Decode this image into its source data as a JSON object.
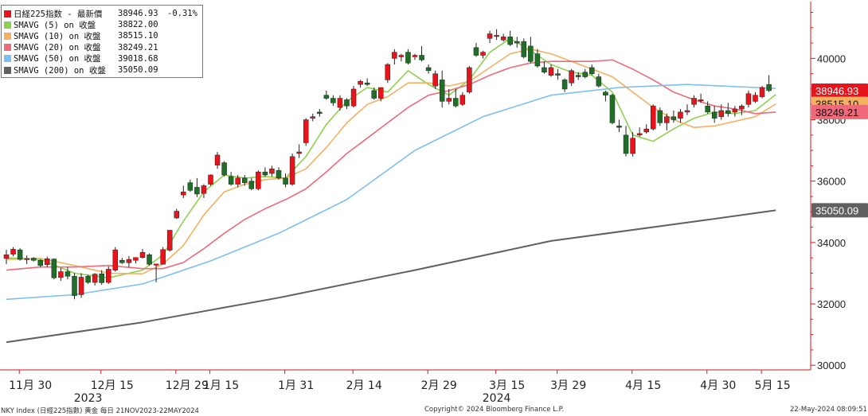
{
  "chart_data": {
    "type": "candlestick",
    "title": "",
    "y_ticks": [
      30000,
      32000,
      34000,
      36000,
      38000,
      40000
    ],
    "ylim": [
      29850,
      41850
    ],
    "grid": false,
    "legend_placement": "top-left",
    "x_tick_labels": [
      "11月 30",
      "12月 15",
      "12月 29",
      "1月 15",
      "1月 31",
      "2月 14",
      "2月 29",
      "3月 15",
      "3月 29",
      "4月 15",
      "4月 30",
      "5月 15"
    ],
    "x_year_labels": [
      "2023",
      "2024"
    ],
    "legend": [
      {
        "label": "日経225指数 - 最新價",
        "value": "38946.93",
        "change": "-0.31%",
        "color": "#e8141c"
      },
      {
        "label": "SMAVG (5)  on 收盤",
        "value": "38822.00",
        "change": "",
        "color": "#8fd14f"
      },
      {
        "label": "SMAVG (10)  on 收盤",
        "value": "38515.10",
        "change": "",
        "color": "#f5b060"
      },
      {
        "label": "SMAVG (20)  on 收盤",
        "value": "38249.21",
        "change": "",
        "color": "#ee6a79"
      },
      {
        "label": "SMAVG (50)  on 收盤",
        "value": "39018.68",
        "change": "",
        "color": "#7fbfef"
      },
      {
        "label": "SMAVG (200)  on 收盤",
        "value": "35050.09",
        "change": "",
        "color": "#606060"
      }
    ],
    "price_tags": [
      {
        "value": "38946.93",
        "color": "#e8141c",
        "text_color": "#ffffff"
      },
      {
        "value": "38515.10",
        "color": "#f5b060",
        "text_color": "#111111"
      },
      {
        "value": "38249.21",
        "color": "#ee6a79",
        "text_color": "#111111"
      },
      {
        "value": "35050.09",
        "color": "#606060",
        "text_color": "#ffffff"
      }
    ],
    "candles": [
      {
        "o": 33480,
        "h": 33760,
        "l": 33300,
        "c": 33600
      },
      {
        "o": 33620,
        "h": 33850,
        "l": 33550,
        "c": 33780
      },
      {
        "o": 33760,
        "h": 33820,
        "l": 33410,
        "c": 33450
      },
      {
        "o": 33450,
        "h": 33580,
        "l": 33300,
        "c": 33480
      },
      {
        "o": 33490,
        "h": 33520,
        "l": 33380,
        "c": 33420
      },
      {
        "o": 33420,
        "h": 33450,
        "l": 33200,
        "c": 33250
      },
      {
        "o": 33280,
        "h": 33540,
        "l": 33200,
        "c": 33470
      },
      {
        "o": 33460,
        "h": 33480,
        "l": 32800,
        "c": 32850
      },
      {
        "o": 32860,
        "h": 33170,
        "l": 32750,
        "c": 33050
      },
      {
        "o": 33050,
        "h": 33200,
        "l": 32800,
        "c": 32900
      },
      {
        "o": 32900,
        "h": 33000,
        "l": 32150,
        "c": 32270
      },
      {
        "o": 32300,
        "h": 33000,
        "l": 32200,
        "c": 32870
      },
      {
        "o": 32900,
        "h": 32950,
        "l": 32650,
        "c": 32700
      },
      {
        "o": 32700,
        "h": 33000,
        "l": 32600,
        "c": 32970
      },
      {
        "o": 32980,
        "h": 33100,
        "l": 32620,
        "c": 32690
      },
      {
        "o": 32700,
        "h": 33220,
        "l": 32650,
        "c": 33130
      },
      {
        "o": 33100,
        "h": 33850,
        "l": 33050,
        "c": 33760
      },
      {
        "o": 33420,
        "h": 33500,
        "l": 33300,
        "c": 33340
      },
      {
        "o": 33340,
        "h": 33560,
        "l": 33200,
        "c": 33450
      },
      {
        "o": 33420,
        "h": 33520,
        "l": 33320,
        "c": 33510
      },
      {
        "o": 33510,
        "h": 33790,
        "l": 33480,
        "c": 33680
      },
      {
        "o": 33600,
        "h": 33650,
        "l": 33250,
        "c": 33290
      },
      {
        "o": 33280,
        "h": 33300,
        "l": 32700,
        "c": 33300
      },
      {
        "o": 33290,
        "h": 33850,
        "l": 33290,
        "c": 33770
      },
      {
        "o": 33750,
        "h": 34400,
        "l": 33700,
        "c": 34400
      },
      {
        "o": 34800,
        "h": 35100,
        "l": 34770,
        "c": 35020
      },
      {
        "o": 35550,
        "h": 35850,
        "l": 35450,
        "c": 35650
      },
      {
        "o": 35950,
        "h": 36050,
        "l": 35650,
        "c": 35700
      },
      {
        "o": 35800,
        "h": 36100,
        "l": 35480,
        "c": 35580
      },
      {
        "o": 35600,
        "h": 35900,
        "l": 35450,
        "c": 35850
      },
      {
        "o": 35900,
        "h": 36220,
        "l": 35850,
        "c": 36200
      },
      {
        "o": 36520,
        "h": 36950,
        "l": 36400,
        "c": 36850
      },
      {
        "o": 36600,
        "h": 36650,
        "l": 36150,
        "c": 36200
      },
      {
        "o": 36150,
        "h": 36300,
        "l": 35850,
        "c": 35900
      },
      {
        "o": 35900,
        "h": 36200,
        "l": 35800,
        "c": 36100
      },
      {
        "o": 36100,
        "h": 36200,
        "l": 35850,
        "c": 35950
      },
      {
        "o": 36000,
        "h": 36100,
        "l": 35700,
        "c": 35750
      },
      {
        "o": 35750,
        "h": 36350,
        "l": 35700,
        "c": 36300
      },
      {
        "o": 36300,
        "h": 36450,
        "l": 36150,
        "c": 36200
      },
      {
        "o": 36250,
        "h": 36500,
        "l": 36150,
        "c": 36400
      },
      {
        "o": 36350,
        "h": 36450,
        "l": 36050,
        "c": 36100
      },
      {
        "o": 36100,
        "h": 36250,
        "l": 35800,
        "c": 35900
      },
      {
        "o": 35900,
        "h": 36900,
        "l": 35850,
        "c": 36800
      },
      {
        "o": 36900,
        "h": 37200,
        "l": 36750,
        "c": 36950
      },
      {
        "o": 37250,
        "h": 38050,
        "l": 37150,
        "c": 38000
      },
      {
        "o": 38050,
        "h": 38200,
        "l": 37950,
        "c": 38100
      },
      {
        "o": 38250,
        "h": 38350,
        "l": 38100,
        "c": 38200
      },
      {
        "o": 38800,
        "h": 38950,
        "l": 38650,
        "c": 38700
      },
      {
        "o": 38700,
        "h": 38800,
        "l": 38450,
        "c": 38550
      },
      {
        "o": 38400,
        "h": 38800,
        "l": 38300,
        "c": 38700
      },
      {
        "o": 38650,
        "h": 38700,
        "l": 38350,
        "c": 38450
      },
      {
        "o": 38450,
        "h": 39100,
        "l": 38400,
        "c": 39000
      },
      {
        "o": 39150,
        "h": 39300,
        "l": 39050,
        "c": 39250
      },
      {
        "o": 39200,
        "h": 39350,
        "l": 39100,
        "c": 39150
      },
      {
        "o": 38950,
        "h": 39050,
        "l": 38650,
        "c": 38700
      },
      {
        "o": 38700,
        "h": 39050,
        "l": 38600,
        "c": 39050
      },
      {
        "o": 39300,
        "h": 39850,
        "l": 39200,
        "c": 39800
      },
      {
        "o": 40000,
        "h": 40300,
        "l": 39800,
        "c": 40200
      },
      {
        "o": 40050,
        "h": 40150,
        "l": 39900,
        "c": 40100
      },
      {
        "o": 40200,
        "h": 40300,
        "l": 39800,
        "c": 39850
      },
      {
        "o": 40050,
        "h": 40150,
        "l": 39950,
        "c": 40100
      },
      {
        "o": 40100,
        "h": 40400,
        "l": 39900,
        "c": 39950
      },
      {
        "o": 39700,
        "h": 39800,
        "l": 39500,
        "c": 39600
      },
      {
        "o": 39100,
        "h": 39600,
        "l": 39000,
        "c": 39500
      },
      {
        "o": 39300,
        "h": 39600,
        "l": 38400,
        "c": 38600
      },
      {
        "o": 38600,
        "h": 39000,
        "l": 38500,
        "c": 38700
      },
      {
        "o": 38700,
        "h": 39000,
        "l": 38400,
        "c": 38450
      },
      {
        "o": 38500,
        "h": 38900,
        "l": 38450,
        "c": 38800
      },
      {
        "o": 38900,
        "h": 39750,
        "l": 38850,
        "c": 39700
      },
      {
        "o": 40350,
        "h": 40500,
        "l": 40050,
        "c": 40100
      },
      {
        "o": 40100,
        "h": 40250,
        "l": 40000,
        "c": 40200
      },
      {
        "o": 40650,
        "h": 40900,
        "l": 40500,
        "c": 40800
      },
      {
        "o": 40750,
        "h": 40950,
        "l": 40600,
        "c": 40750
      },
      {
        "o": 40600,
        "h": 40800,
        "l": 40550,
        "c": 40700
      },
      {
        "o": 40700,
        "h": 40900,
        "l": 40400,
        "c": 40450
      },
      {
        "o": 40550,
        "h": 40700,
        "l": 40350,
        "c": 40500
      },
      {
        "o": 40550,
        "h": 40650,
        "l": 40000,
        "c": 40050
      },
      {
        "o": 40400,
        "h": 40700,
        "l": 39850,
        "c": 39900
      },
      {
        "o": 40150,
        "h": 40300,
        "l": 39700,
        "c": 39750
      },
      {
        "o": 39700,
        "h": 39900,
        "l": 39500,
        "c": 39550
      },
      {
        "o": 39450,
        "h": 39800,
        "l": 39400,
        "c": 39700
      },
      {
        "o": 39500,
        "h": 39650,
        "l": 39300,
        "c": 39450
      },
      {
        "o": 39300,
        "h": 39350,
        "l": 38900,
        "c": 39000
      },
      {
        "o": 39200,
        "h": 39650,
        "l": 39100,
        "c": 39600
      },
      {
        "o": 39450,
        "h": 39550,
        "l": 39300,
        "c": 39400
      },
      {
        "o": 39550,
        "h": 39650,
        "l": 39350,
        "c": 39400
      },
      {
        "o": 39700,
        "h": 39800,
        "l": 39450,
        "c": 39500
      },
      {
        "o": 39400,
        "h": 39500,
        "l": 39050,
        "c": 39100
      },
      {
        "o": 38900,
        "h": 38950,
        "l": 38600,
        "c": 38800
      },
      {
        "o": 38800,
        "h": 38850,
        "l": 37850,
        "c": 37900
      },
      {
        "o": 37800,
        "h": 38000,
        "l": 37600,
        "c": 37750
      },
      {
        "o": 37500,
        "h": 37800,
        "l": 36800,
        "c": 36900
      },
      {
        "o": 36900,
        "h": 37600,
        "l": 36800,
        "c": 37400
      },
      {
        "o": 37500,
        "h": 37750,
        "l": 37450,
        "c": 37550
      },
      {
        "o": 37600,
        "h": 37850,
        "l": 37550,
        "c": 37700
      },
      {
        "o": 37700,
        "h": 38500,
        "l": 37650,
        "c": 38450
      },
      {
        "o": 38300,
        "h": 38400,
        "l": 37800,
        "c": 37900
      },
      {
        "o": 37900,
        "h": 38200,
        "l": 37650,
        "c": 38100
      },
      {
        "o": 38100,
        "h": 38300,
        "l": 37900,
        "c": 38000
      },
      {
        "o": 38050,
        "h": 38350,
        "l": 37900,
        "c": 38250
      },
      {
        "o": 38250,
        "h": 38500,
        "l": 38150,
        "c": 38300
      },
      {
        "o": 38500,
        "h": 38800,
        "l": 38400,
        "c": 38700
      },
      {
        "o": 38650,
        "h": 38850,
        "l": 38550,
        "c": 38650
      },
      {
        "o": 38450,
        "h": 38600,
        "l": 38200,
        "c": 38250
      },
      {
        "o": 38250,
        "h": 38450,
        "l": 37900,
        "c": 38050
      },
      {
        "o": 38100,
        "h": 38500,
        "l": 38000,
        "c": 38300
      },
      {
        "o": 38300,
        "h": 38550,
        "l": 38100,
        "c": 38200
      },
      {
        "o": 38250,
        "h": 38450,
        "l": 38100,
        "c": 38350
      },
      {
        "o": 38350,
        "h": 38500,
        "l": 38150,
        "c": 38450
      },
      {
        "o": 38500,
        "h": 38950,
        "l": 38400,
        "c": 38850
      },
      {
        "o": 38600,
        "h": 38900,
        "l": 38550,
        "c": 38800
      },
      {
        "o": 38750,
        "h": 39100,
        "l": 38700,
        "c": 39050
      },
      {
        "o": 39150,
        "h": 39450,
        "l": 38900,
        "c": 38950
      }
    ],
    "series": [
      {
        "name": "SMAVG (5)",
        "color": "#8fd14f",
        "x": [
          0,
          5,
          10,
          15,
          20,
          23,
          26,
          29,
          32,
          35,
          38,
          41,
          44,
          47,
          50,
          53,
          56,
          59,
          62,
          65,
          68,
          71,
          74,
          77,
          80,
          83,
          86,
          89,
          92,
          95,
          98,
          101,
          104,
          107,
          110,
          113
        ],
        "values": [
          33500,
          33450,
          33000,
          32850,
          33100,
          33600,
          34700,
          35650,
          36200,
          36100,
          36150,
          36100,
          36800,
          37850,
          38600,
          39050,
          38900,
          39600,
          39150,
          38800,
          39300,
          40200,
          40650,
          40250,
          39800,
          39550,
          39450,
          38900,
          37500,
          37300,
          37700,
          38050,
          38250,
          38200,
          38300,
          38820
        ]
      },
      {
        "name": "SMAVG (10)",
        "color": "#f5b060",
        "x": [
          0,
          5,
          10,
          15,
          20,
          23,
          26,
          29,
          32,
          35,
          38,
          41,
          44,
          47,
          50,
          53,
          56,
          59,
          62,
          65,
          68,
          71,
          74,
          77,
          80,
          83,
          86,
          89,
          92,
          95,
          98,
          101,
          104,
          107,
          110,
          113
        ],
        "values": [
          33450,
          33480,
          33250,
          33000,
          32980,
          33300,
          33900,
          34900,
          35650,
          35900,
          36050,
          36100,
          36400,
          37100,
          37900,
          38500,
          38750,
          39200,
          39200,
          39100,
          39250,
          39700,
          40150,
          40300,
          40150,
          39900,
          39650,
          39400,
          38900,
          38400,
          38000,
          37750,
          37800,
          37950,
          38100,
          38515
        ]
      },
      {
        "name": "SMAVG (20)",
        "color": "#ee6a79",
        "x": [
          0,
          5,
          10,
          15,
          20,
          23,
          26,
          29,
          32,
          35,
          38,
          41,
          44,
          47,
          50,
          53,
          56,
          59,
          62,
          65,
          68,
          71,
          74,
          77,
          80,
          83,
          86,
          89,
          92,
          95,
          98,
          101,
          104,
          107,
          110,
          113
        ],
        "values": [
          33100,
          33200,
          33200,
          33250,
          33150,
          33150,
          33350,
          33800,
          34300,
          34750,
          35100,
          35400,
          35750,
          36300,
          36900,
          37400,
          37900,
          38400,
          38800,
          38950,
          39150,
          39450,
          39700,
          39850,
          39900,
          39900,
          39900,
          39950,
          39650,
          39300,
          38900,
          38650,
          38450,
          38350,
          38200,
          38249
        ]
      },
      {
        "name": "SMAVG (50)",
        "color": "#7fbfef",
        "x": [
          0,
          10,
          20,
          30,
          40,
          50,
          60,
          70,
          80,
          90,
          95,
          100,
          105,
          110,
          113
        ],
        "values": [
          32150,
          32300,
          32650,
          33400,
          34300,
          35400,
          37000,
          38100,
          38800,
          39050,
          39100,
          39150,
          39100,
          39050,
          39019
        ]
      },
      {
        "name": "SMAVG (200)",
        "color": "#606060",
        "x": [
          0,
          20,
          40,
          60,
          80,
          100,
          113
        ],
        "values": [
          30750,
          31400,
          32200,
          33100,
          34050,
          34650,
          35050
        ]
      }
    ]
  },
  "footer": {
    "left": "NKY Index (日經225指數) 黄金 每日 21NOV2023-22MAY2024",
    "center": "Copyright© 2024 Bloomberg Finance L.P.",
    "right": "22-May-2024 08:09:51"
  }
}
